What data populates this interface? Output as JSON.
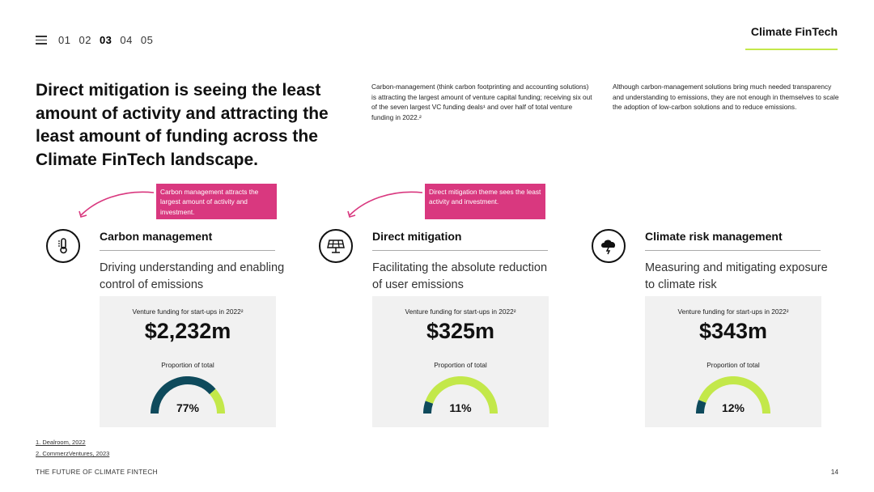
{
  "nav": {
    "pages": [
      "01",
      "02",
      "03",
      "04",
      "05"
    ],
    "active": "03"
  },
  "brand": "Climate FinTech",
  "headline": "Direct mitigation is seeing the least amount of activity and attracting the least amount of funding across the Climate FinTech landscape.",
  "intro": [
    "Carbon-management (think carbon footprinting and accounting solutions) is attracting the largest amount of venture capital funding; receiving six out of the seven largest VC funding deals¹ and over half of total venture funding in 2022.²",
    "Although carbon-management solutions bring much needed transparency and understanding to emissions, they are not enough in themselves to scale the adoption of low-carbon solutions and to reduce emissions."
  ],
  "callouts": [
    "Carbon management attracts the largest amount of activity and investment.",
    "Direct mitigation theme sees the least activity and investment."
  ],
  "categories": [
    {
      "icon": "thermometer-icon",
      "title": "Carbon management",
      "desc": "Driving understanding and enabling control of emissions",
      "funding_label": "Venture funding for start-ups in 2022²",
      "amount": "$2,232m",
      "prop_label": "Proportion of total",
      "pct_text": "77%",
      "pct": 77
    },
    {
      "icon": "solar-panel-icon",
      "title": "Direct mitigation",
      "desc": "Facilitating the absolute reduction of user emissions",
      "funding_label": "Venture funding for start-ups in 2022²",
      "amount": "$325m",
      "prop_label": "Proportion of total",
      "pct_text": "11%",
      "pct": 11
    },
    {
      "icon": "storm-cloud-icon",
      "title": "Climate risk management",
      "desc": "Measuring and mitigating exposure to climate risk",
      "funding_label": "Venture funding for start-ups in 2022²",
      "amount": "$343m",
      "prop_label": "Proportion of total",
      "pct_text": "12%",
      "pct": 12
    }
  ],
  "footnotes": [
    "1. Dealroom, 2022",
    "2. CommerzVentures, 2023"
  ],
  "footer": {
    "title": "THE FUTURE OF CLIMATE FINTECH",
    "page": "14"
  },
  "colors": {
    "accent": "#c3e84a",
    "callout": "#d9387f",
    "gauge_dark": "#0e4a5c",
    "card_bg": "#f1f1f1"
  }
}
